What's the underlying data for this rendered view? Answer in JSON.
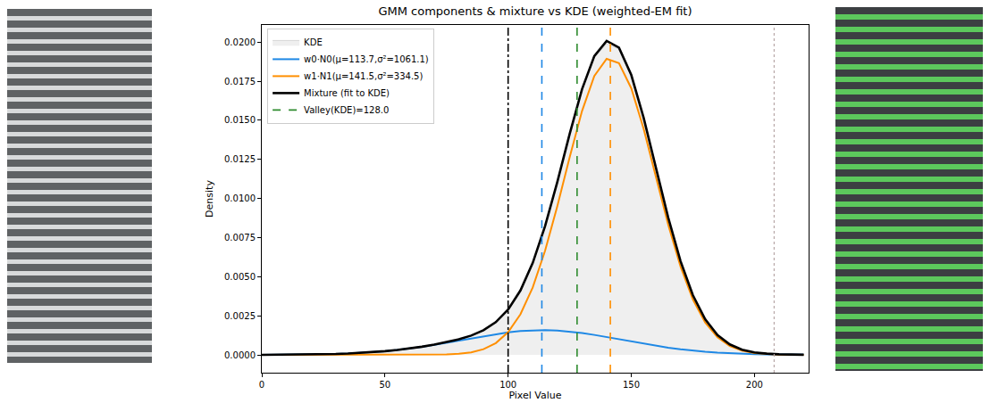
{
  "chart_data": {
    "type": "line",
    "title": "GMM components & mixture vs KDE (weighted-EM fit)",
    "x_label": "Pixel Value",
    "y_label": "Density",
    "x": [
      0,
      5,
      10,
      15,
      20,
      25,
      30,
      35,
      40,
      45,
      50,
      55,
      60,
      65,
      70,
      75,
      80,
      85,
      90,
      95,
      100,
      105,
      110,
      115,
      120,
      125,
      130,
      135,
      140,
      145,
      150,
      155,
      160,
      165,
      170,
      175,
      180,
      185,
      190,
      195,
      200,
      205,
      210,
      215,
      220
    ],
    "series": [
      {
        "name": "KDE",
        "type": "area",
        "color": "#efefef",
        "values": [
          3.6e-06,
          6e-06,
          1e-05,
          1.6e-05,
          2.5e-05,
          3.9e-05,
          5.8e-05,
          8.5e-05,
          0.000122,
          0.000171,
          0.000234,
          0.000311,
          0.000407,
          0.00052,
          0.000651,
          0.000806,
          0.000992,
          0.001233,
          0.001573,
          0.00209,
          0.002894,
          0.004119,
          0.005883,
          0.008234,
          0.011072,
          0.014136,
          0.016985,
          0.019,
          0.0199,
          0.01955,
          0.017903,
          0.015176,
          0.011966,
          0.008779,
          0.005998,
          0.00382,
          0.002274,
          0.001267,
          0.000667,
          0.000334,
          0.000161,
          7.7e-05,
          3.7e-05,
          1.9e-05,
          1e-05
        ]
      },
      {
        "name": "w0·N0(μ=113.7,σ²=1061.1)",
        "type": "line",
        "color": "#1e88e5",
        "values": [
          3.6e-06,
          6e-06,
          1e-05,
          1.6e-05,
          2.5e-05,
          3.9e-05,
          5.8e-05,
          8.5e-05,
          0.000122,
          0.000171,
          0.000234,
          0.000311,
          0.000406,
          0.000517,
          0.000642,
          0.00078,
          0.000925,
          0.001072,
          0.001212,
          0.00134,
          0.001446,
          0.001524,
          0.00157,
          0.00158,
          0.001551,
          0.001488,
          0.001394,
          0.001276,
          0.00114,
          0.000996,
          0.000849,
          0.000707,
          0.000575,
          0.000457,
          0.000355,
          0.000269,
          0.000199,
          0.000144,
          0.000102,
          7e-05,
          4.7e-05,
          3.1e-05,
          2e-05,
          1.3e-05,
          8e-06
        ]
      },
      {
        "name": "w1·N1(μ=141.5,σ²=334.5)",
        "type": "line",
        "color": "#ff8f00",
        "values": [
          0,
          0,
          0,
          0,
          0,
          0,
          0,
          0,
          0,
          0,
          0,
          0,
          1e-06,
          3e-06,
          9e-06,
          2.6e-05,
          6.7e-05,
          0.000161,
          0.000361,
          0.00075,
          0.001448,
          0.002595,
          0.004313,
          0.006654,
          0.009521,
          0.012648,
          0.015591,
          0.017837,
          0.018936,
          0.018656,
          0.017054,
          0.014469,
          0.011391,
          0.008322,
          0.005643,
          0.003551,
          0.002075,
          0.001123,
          0.000565,
          0.000264,
          0.000114,
          4.6e-05,
          1.7e-05,
          6e-06,
          2e-06
        ]
      },
      {
        "name": "Mixture (fit to KDE)",
        "type": "line",
        "color": "#000000",
        "values": [
          3.6e-06,
          6e-06,
          1e-05,
          1.6e-05,
          2.5e-05,
          3.9e-05,
          5.8e-05,
          8.5e-05,
          0.000122,
          0.000171,
          0.000234,
          0.000311,
          0.000407,
          0.00052,
          0.000651,
          0.000806,
          0.000992,
          0.001233,
          0.001573,
          0.00209,
          0.002894,
          0.004119,
          0.005883,
          0.008234,
          0.011072,
          0.014136,
          0.016985,
          0.019113,
          0.020076,
          0.019652,
          0.017903,
          0.015176,
          0.011966,
          0.008779,
          0.005998,
          0.00382,
          0.002274,
          0.001267,
          0.000667,
          0.000334,
          0.000161,
          7.7e-05,
          3.7e-05,
          1.9e-05,
          1e-05
        ]
      }
    ],
    "reference_lines": [
      {
        "x": 100,
        "color": "#000000",
        "line_style": "dashdot"
      },
      {
        "x": 113.7,
        "color": "#1e88e5",
        "line_style": "dashed"
      },
      {
        "x": 141.5,
        "color": "#ff8f00",
        "line_style": "dashed"
      },
      {
        "x": 208,
        "color": "#b8a8a8",
        "line_style": "dotted"
      },
      {
        "x": 128.0,
        "color": "#2e8b2e",
        "line_style": "dashed",
        "name": "Valley(KDE)=128.0"
      }
    ],
    "xlim": [
      0,
      222
    ],
    "ylim": [
      -0.00114,
      0.0211
    ],
    "xticks": [
      0,
      50,
      100,
      150,
      200
    ],
    "yticks": [
      {
        "value": 0,
        "label": "0.0000"
      },
      0.0025,
      {
        "value": 0.005,
        "label": "0.0050"
      },
      0.0075,
      {
        "value": 0.01,
        "label": "0.0100"
      },
      0.0125,
      {
        "value": 0.015,
        "label": "0.0150"
      },
      0.0175,
      {
        "value": 0.02,
        "label": "0.0200"
      }
    ],
    "legend": "upper left",
    "grid": false
  }
}
